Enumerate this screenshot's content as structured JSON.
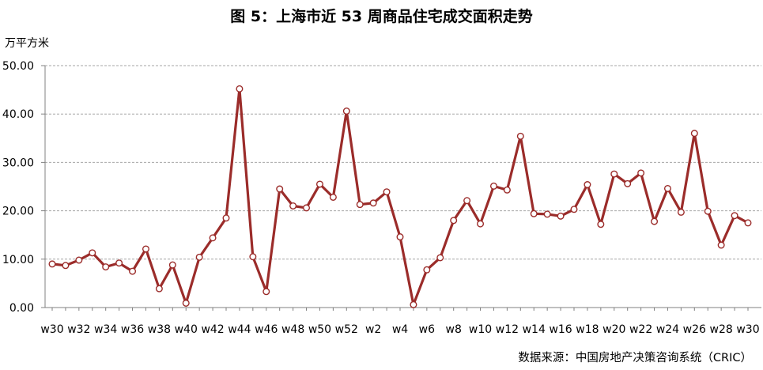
{
  "chart_data": {
    "type": "line",
    "title": "图 5：上海市近 53 周商品住宅成交面积走势",
    "ylabel": "万平方米",
    "source": "数据来源：中国房地产决策咨询系统（CRIC）",
    "ylim": [
      0,
      50
    ],
    "y_ticks": [
      "0.00",
      "10.00",
      "20.00",
      "30.00",
      "40.00",
      "50.00"
    ],
    "y_tick_values": [
      0,
      10,
      20,
      30,
      40,
      50
    ],
    "x": [
      "w30",
      "w31",
      "w32",
      "w33",
      "w34",
      "w35",
      "w36",
      "w37",
      "w38",
      "w39",
      "w40",
      "w41",
      "w42",
      "w43",
      "w44",
      "w45",
      "w46",
      "w47",
      "w48",
      "w49",
      "w50",
      "w51",
      "w52",
      "w1",
      "w2",
      "w3",
      "w4",
      "w5",
      "w6",
      "w7",
      "w8",
      "w9",
      "w10",
      "w11",
      "w12",
      "w13",
      "w14",
      "w15",
      "w16",
      "w17",
      "w18",
      "w19",
      "w20",
      "w21",
      "w22",
      "w23",
      "w24",
      "w25",
      "w26",
      "w27",
      "w28",
      "w29",
      "w30"
    ],
    "x_tick_labels": [
      "w30",
      "w32",
      "w34",
      "w36",
      "w38",
      "w40",
      "w42",
      "w44",
      "w46",
      "w48",
      "w50",
      "w52",
      "w2",
      "w4",
      "w6",
      "w8",
      "w10",
      "w12",
      "w14",
      "w16",
      "w18",
      "w20",
      "w22",
      "w24",
      "w26",
      "w28",
      "w30"
    ],
    "values": [
      9.0,
      8.7,
      9.8,
      11.3,
      8.4,
      9.2,
      7.5,
      12.1,
      3.9,
      8.8,
      0.9,
      10.4,
      14.4,
      18.5,
      45.2,
      10.5,
      3.3,
      24.5,
      21.0,
      20.6,
      25.5,
      22.8,
      40.6,
      21.3,
      21.6,
      23.9,
      14.6,
      0.6,
      7.8,
      10.3,
      18.0,
      22.1,
      17.3,
      25.1,
      24.3,
      35.4,
      19.4,
      19.3,
      18.9,
      20.3,
      25.4,
      17.2,
      27.6,
      25.6,
      27.8,
      17.8,
      24.6,
      19.7,
      36.0,
      19.9,
      12.9,
      19.0,
      17.5
    ],
    "grid": true,
    "line_color": "#9b2c2a",
    "marker_fill": "#ffffff",
    "grid_color": "#a6a6a6"
  }
}
